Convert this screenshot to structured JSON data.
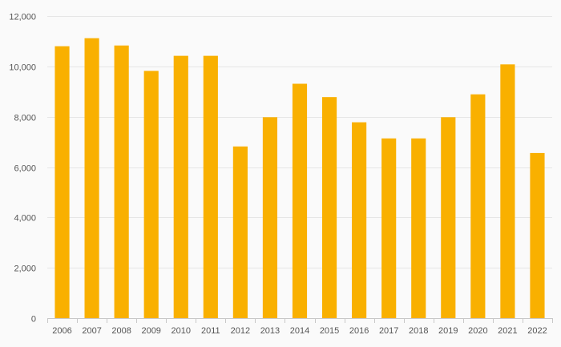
{
  "chart_data": {
    "type": "bar",
    "title": "",
    "xlabel": "",
    "ylabel": "",
    "categories": [
      "2006",
      "2007",
      "2008",
      "2009",
      "2010",
      "2011",
      "2012",
      "2013",
      "2014",
      "2015",
      "2016",
      "2017",
      "2018",
      "2019",
      "2020",
      "2021",
      "2022"
    ],
    "values": [
      10800,
      11120,
      10830,
      9820,
      10420,
      10420,
      6820,
      7980,
      9310,
      8780,
      7780,
      7140,
      7140,
      7980,
      8890,
      10080,
      6560
    ],
    "ylim": [
      0,
      12000
    ],
    "yticks": [
      0,
      2000,
      4000,
      6000,
      8000,
      10000,
      12000
    ],
    "ytick_labels": [
      "0",
      "2,000",
      "4,000",
      "6,000",
      "8,000",
      "10,000",
      "12,000"
    ],
    "grid": true,
    "legend": "none",
    "bar_color": "#f9b000"
  }
}
